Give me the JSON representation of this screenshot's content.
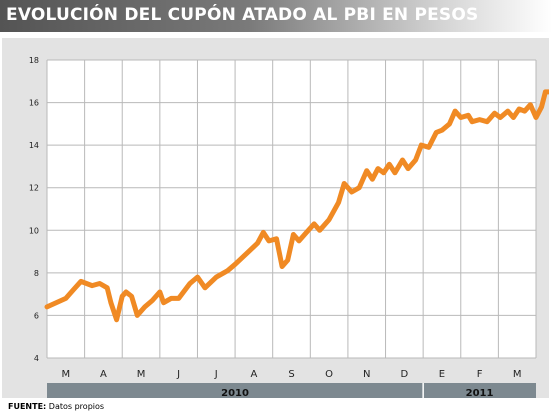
{
  "title": "EVOLUCIÓN DEL CUPÓN ATADO AL PBI EN PESOS",
  "source": {
    "label": "FUENTE:",
    "text": "Datos propios"
  },
  "colors": {
    "line": "#f08a24",
    "panel": "#e3e3e3",
    "plot_bg": "#ffffff",
    "year_band": "#7d8990"
  },
  "chart_data": {
    "type": "line",
    "title": "EVOLUCIÓN DEL CUPÓN ATADO AL PBI EN PESOS",
    "xlabel": "",
    "ylabel": "",
    "ylim": [
      4,
      18
    ],
    "yticks": [
      4,
      6,
      8,
      10,
      12,
      14,
      16,
      18
    ],
    "grid": true,
    "month_ticks": [
      "M",
      "A",
      "M",
      "J",
      "J",
      "A",
      "S",
      "O",
      "N",
      "D",
      "E",
      "F",
      "M"
    ],
    "years": [
      {
        "label": "2010",
        "months": 10
      },
      {
        "label": "2011",
        "months": 3
      }
    ],
    "x_unit": "months since start of March 2010",
    "series": [
      {
        "values": [
          [
            0.0,
            6.4
          ],
          [
            0.5,
            6.8
          ],
          [
            0.7,
            7.2
          ],
          [
            0.9,
            7.6
          ],
          [
            1.2,
            7.4
          ],
          [
            1.4,
            7.5
          ],
          [
            1.6,
            7.3
          ],
          [
            1.7,
            6.6
          ],
          [
            1.85,
            5.8
          ],
          [
            2.0,
            6.9
          ],
          [
            2.1,
            7.1
          ],
          [
            2.25,
            6.9
          ],
          [
            2.4,
            6.0
          ],
          [
            2.6,
            6.4
          ],
          [
            2.8,
            6.7
          ],
          [
            3.0,
            7.1
          ],
          [
            3.1,
            6.6
          ],
          [
            3.3,
            6.8
          ],
          [
            3.5,
            6.8
          ],
          [
            3.8,
            7.5
          ],
          [
            4.0,
            7.8
          ],
          [
            4.2,
            7.3
          ],
          [
            4.5,
            7.8
          ],
          [
            4.8,
            8.1
          ],
          [
            5.0,
            8.4
          ],
          [
            5.3,
            8.9
          ],
          [
            5.6,
            9.4
          ],
          [
            5.75,
            9.9
          ],
          [
            5.9,
            9.5
          ],
          [
            6.1,
            9.6
          ],
          [
            6.25,
            8.3
          ],
          [
            6.4,
            8.6
          ],
          [
            6.55,
            9.8
          ],
          [
            6.7,
            9.5
          ],
          [
            6.9,
            9.9
          ],
          [
            7.1,
            10.3
          ],
          [
            7.25,
            10.0
          ],
          [
            7.5,
            10.5
          ],
          [
            7.75,
            11.3
          ],
          [
            7.9,
            12.2
          ],
          [
            8.1,
            11.8
          ],
          [
            8.3,
            12.0
          ],
          [
            8.5,
            12.8
          ],
          [
            8.65,
            12.4
          ],
          [
            8.8,
            12.9
          ],
          [
            8.95,
            12.7
          ],
          [
            9.1,
            13.1
          ],
          [
            9.25,
            12.7
          ],
          [
            9.45,
            13.3
          ],
          [
            9.6,
            12.9
          ],
          [
            9.8,
            13.3
          ],
          [
            9.95,
            14.0
          ],
          [
            10.15,
            13.9
          ],
          [
            10.35,
            14.6
          ],
          [
            10.5,
            14.7
          ],
          [
            10.7,
            15.0
          ],
          [
            10.85,
            15.6
          ],
          [
            11.0,
            15.3
          ],
          [
            11.2,
            15.4
          ],
          [
            11.3,
            15.1
          ],
          [
            11.5,
            15.2
          ],
          [
            11.7,
            15.1
          ],
          [
            11.9,
            15.5
          ],
          [
            12.05,
            15.3
          ],
          [
            12.25,
            15.6
          ],
          [
            12.4,
            15.3
          ],
          [
            12.55,
            15.7
          ],
          [
            12.7,
            15.6
          ],
          [
            12.85,
            15.9
          ],
          [
            13.0,
            15.3
          ],
          [
            13.15,
            15.8
          ],
          [
            13.25,
            16.5
          ],
          [
            13.45,
            16.5
          ]
        ]
      }
    ]
  }
}
